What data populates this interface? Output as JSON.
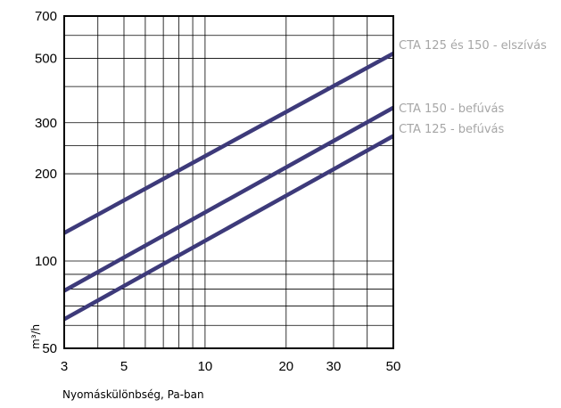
{
  "chart_data": {
    "type": "line",
    "title": "",
    "xlabel": "Nyomáskülönbség, Pa-ban",
    "ylabel": "m³/h",
    "x_scale": "log",
    "y_scale": "log",
    "xlim": [
      3,
      50
    ],
    "ylim": [
      50,
      700
    ],
    "x_ticks": [
      3,
      5,
      10,
      20,
      30,
      50
    ],
    "x_tick_labels": [
      "3",
      "5",
      "10",
      "20",
      "30",
      "50"
    ],
    "x_minor_grid": [
      4,
      6,
      7,
      8,
      9,
      40
    ],
    "y_ticks": [
      50,
      100,
      200,
      300,
      500,
      700
    ],
    "y_tick_labels": [
      "50",
      "100",
      "200",
      "300",
      "500",
      "700"
    ],
    "y_minor_grid": [
      60,
      70,
      80,
      90,
      250,
      400,
      600
    ],
    "grid": true,
    "line_color": "#3d3a7a",
    "label_color": "#a6a6a6",
    "series": [
      {
        "name": "CTA 125 és 150 - elszívás",
        "x": [
          3,
          50
        ],
        "y": [
          125,
          520
        ]
      },
      {
        "name": "CTA 150 - befúvás",
        "x": [
          3,
          50
        ],
        "y": [
          79,
          338
        ]
      },
      {
        "name": "CTA 125 - befúvás",
        "x": [
          3,
          50
        ],
        "y": [
          63,
          270
        ]
      }
    ]
  }
}
